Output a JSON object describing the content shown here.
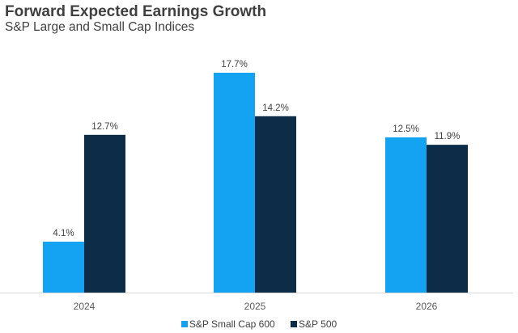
{
  "chart_data": {
    "type": "bar",
    "title": "Forward Expected Earnings Growth",
    "subtitle": "S&P Large and Small Cap Indices",
    "categories": [
      "2024",
      "2025",
      "2026"
    ],
    "series": [
      {
        "name": "S&P Small Cap 600",
        "color": "#14A3F2",
        "values": [
          4.1,
          17.7,
          12.5
        ],
        "labels": [
          "4.1%",
          "17.7%",
          "12.5%"
        ]
      },
      {
        "name": "S&P 500",
        "color": "#0D2C48",
        "values": [
          12.7,
          14.2,
          11.9
        ],
        "labels": [
          "12.7%",
          "14.2%",
          "11.9%"
        ]
      }
    ],
    "ylim": [
      0,
      17.7
    ],
    "grid": false,
    "legend": "bottom"
  }
}
